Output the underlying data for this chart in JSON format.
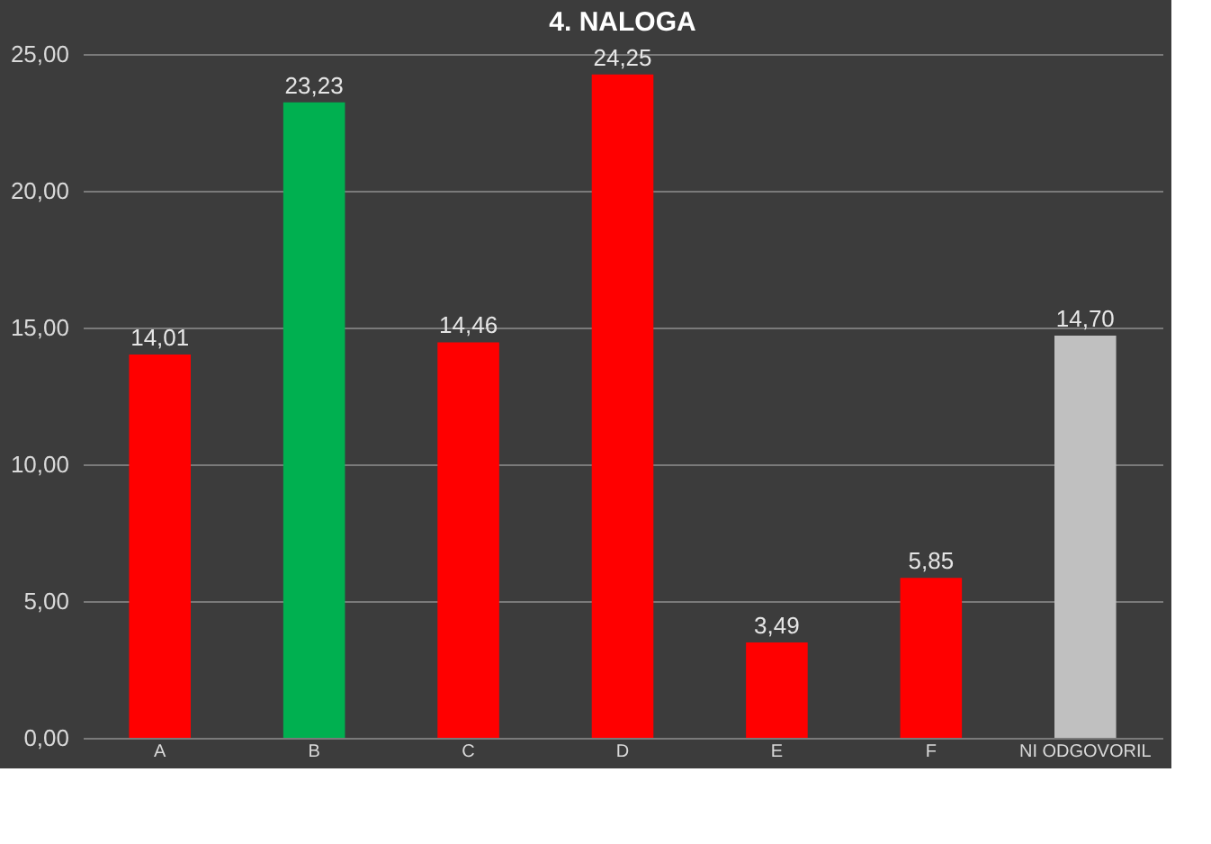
{
  "chart_data": {
    "type": "bar",
    "title": "4. NALOGA",
    "categories": [
      "A",
      "B",
      "C",
      "D",
      "E",
      "F",
      "NI ODGOVORIL"
    ],
    "values": [
      14.01,
      23.23,
      14.46,
      24.25,
      3.49,
      5.85,
      14.7
    ],
    "colors": [
      "#ff0000",
      "#00b050",
      "#ff0000",
      "#ff0000",
      "#ff0000",
      "#ff0000",
      "#c0c0c0"
    ],
    "value_labels": [
      "14,01",
      "23,23",
      "14,46",
      "24,25",
      "3,49",
      "5,85",
      "14,70"
    ],
    "ylim": [
      0,
      25
    ],
    "yticks": [
      {
        "value": 0,
        "label": "0,00"
      },
      {
        "value": 5,
        "label": "5,00"
      },
      {
        "value": 10,
        "label": "10,00"
      },
      {
        "value": 15,
        "label": "15,00"
      },
      {
        "value": 20,
        "label": "20,00"
      },
      {
        "value": 25,
        "label": "25,00"
      }
    ],
    "grid": "y"
  }
}
